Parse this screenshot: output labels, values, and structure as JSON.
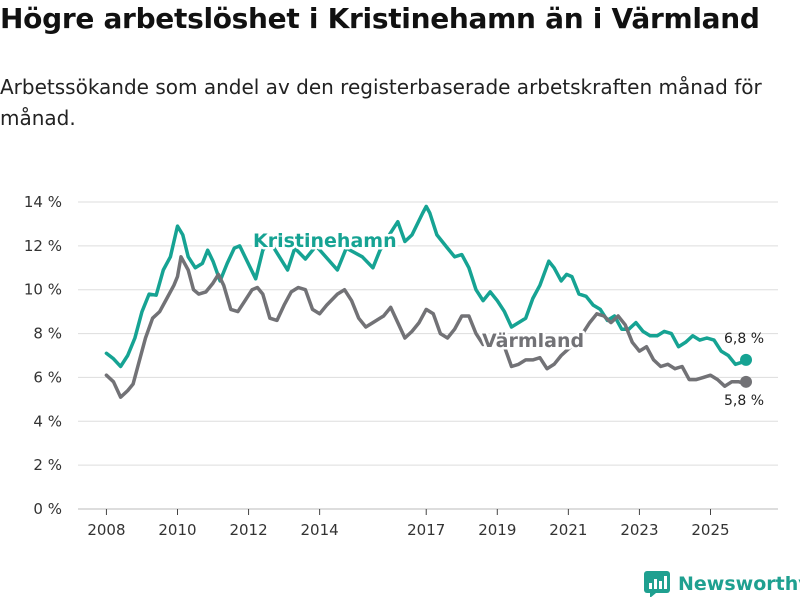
{
  "title": "Högre arbetslöshet i Kristinehamn än i Värmland",
  "subtitle": "Arbetssökande som andel av den registerbaserade arbetskraften månad för månad.",
  "brand": {
    "name": "Newsworthy"
  },
  "colors": {
    "kristinehamn": "#16a393",
    "varmland": "#727276",
    "grid": "#dddddd",
    "axis": "#333333"
  },
  "chart_data": {
    "type": "line",
    "title": "Högre arbetslöshet i Kristinehamn än i Värmland",
    "xlabel": "",
    "ylabel": "",
    "x_ticks": [
      {
        "value": 2008,
        "label": "2008"
      },
      {
        "value": 2010,
        "label": "2010"
      },
      {
        "value": 2012,
        "label": "2012"
      },
      {
        "value": 2014,
        "label": "2014"
      },
      {
        "value": 2017,
        "label": "2017"
      },
      {
        "value": 2019,
        "label": "2019"
      },
      {
        "value": 2021,
        "label": "2021"
      },
      {
        "value": 2023,
        "label": "2023"
      },
      {
        "value": 2025,
        "label": "2025"
      }
    ],
    "xlim": [
      2007.2,
      2026.9
    ],
    "y_ticks": [
      {
        "value": 0,
        "label": "0 %"
      },
      {
        "value": 2,
        "label": "2 %"
      },
      {
        "value": 4,
        "label": "4 %"
      },
      {
        "value": 6,
        "label": "6 %"
      },
      {
        "value": 8,
        "label": "8 %"
      },
      {
        "value": 10,
        "label": "10 %"
      },
      {
        "value": 12,
        "label": "12 %"
      },
      {
        "value": 14,
        "label": "14 %"
      }
    ],
    "ylim": [
      0,
      14
    ],
    "grid": true,
    "series": [
      {
        "name": "Kristinehamn",
        "label": "Kristinehamn",
        "end_label": "6,8 %",
        "end_value": 6.8,
        "color_key": "kristinehamn",
        "points": [
          [
            2008.0,
            7.1
          ],
          [
            2008.2,
            6.85
          ],
          [
            2008.4,
            6.5
          ],
          [
            2008.6,
            7.0
          ],
          [
            2008.8,
            7.8
          ],
          [
            2009.0,
            9.0
          ],
          [
            2009.2,
            9.8
          ],
          [
            2009.4,
            9.75
          ],
          [
            2009.6,
            10.9
          ],
          [
            2009.8,
            11.5
          ],
          [
            2010.0,
            12.9
          ],
          [
            2010.15,
            12.5
          ],
          [
            2010.3,
            11.5
          ],
          [
            2010.5,
            11.0
          ],
          [
            2010.7,
            11.2
          ],
          [
            2010.85,
            11.8
          ],
          [
            2011.0,
            11.3
          ],
          [
            2011.2,
            10.4
          ],
          [
            2011.4,
            11.2
          ],
          [
            2011.6,
            11.9
          ],
          [
            2011.75,
            12.0
          ],
          [
            2012.2,
            10.5
          ],
          [
            2012.4,
            11.8
          ],
          [
            2012.6,
            12.2
          ],
          [
            2013.1,
            10.9
          ],
          [
            2013.3,
            11.9
          ],
          [
            2013.6,
            11.4
          ],
          [
            2013.9,
            12.0
          ],
          [
            2014.5,
            10.9
          ],
          [
            2014.75,
            11.9
          ],
          [
            2015.2,
            11.5
          ],
          [
            2015.5,
            11.0
          ],
          [
            2015.7,
            11.8
          ],
          [
            2016.0,
            12.6
          ],
          [
            2016.2,
            13.1
          ],
          [
            2016.4,
            12.2
          ],
          [
            2016.6,
            12.5
          ],
          [
            2016.9,
            13.5
          ],
          [
            2017.0,
            13.8
          ],
          [
            2017.1,
            13.5
          ],
          [
            2017.3,
            12.5
          ],
          [
            2017.6,
            11.9
          ],
          [
            2017.8,
            11.5
          ],
          [
            2018.0,
            11.6
          ],
          [
            2018.2,
            11.0
          ],
          [
            2018.4,
            10.0
          ],
          [
            2018.6,
            9.5
          ],
          [
            2018.8,
            9.9
          ],
          [
            2019.0,
            9.5
          ],
          [
            2019.2,
            9.0
          ],
          [
            2019.4,
            8.3
          ],
          [
            2019.6,
            8.5
          ],
          [
            2019.8,
            8.7
          ],
          [
            2020.0,
            9.6
          ],
          [
            2020.2,
            10.2
          ],
          [
            2020.45,
            11.3
          ],
          [
            2020.6,
            11.0
          ],
          [
            2020.8,
            10.4
          ],
          [
            2020.95,
            10.7
          ],
          [
            2021.1,
            10.6
          ],
          [
            2021.3,
            9.8
          ],
          [
            2021.5,
            9.7
          ],
          [
            2021.7,
            9.3
          ],
          [
            2021.9,
            9.1
          ],
          [
            2022.1,
            8.6
          ],
          [
            2022.3,
            8.8
          ],
          [
            2022.5,
            8.2
          ],
          [
            2022.7,
            8.2
          ],
          [
            2022.9,
            8.5
          ],
          [
            2023.1,
            8.1
          ],
          [
            2023.3,
            7.9
          ],
          [
            2023.5,
            7.9
          ],
          [
            2023.7,
            8.1
          ],
          [
            2023.9,
            8.0
          ],
          [
            2024.1,
            7.4
          ],
          [
            2024.3,
            7.6
          ],
          [
            2024.5,
            7.9
          ],
          [
            2024.7,
            7.7
          ],
          [
            2024.9,
            7.8
          ],
          [
            2025.1,
            7.7
          ],
          [
            2025.3,
            7.2
          ],
          [
            2025.5,
            7.0
          ],
          [
            2025.7,
            6.6
          ],
          [
            2025.9,
            6.7
          ]
        ]
      },
      {
        "name": "Värmland",
        "label": "Värmland",
        "end_label": "5,8 %",
        "end_value": 5.8,
        "color_key": "varmland",
        "points": [
          [
            2008.0,
            6.1
          ],
          [
            2008.2,
            5.8
          ],
          [
            2008.4,
            5.1
          ],
          [
            2008.6,
            5.4
          ],
          [
            2008.75,
            5.7
          ],
          [
            2008.9,
            6.6
          ],
          [
            2009.1,
            7.8
          ],
          [
            2009.3,
            8.7
          ],
          [
            2009.5,
            9.0
          ],
          [
            2009.7,
            9.6
          ],
          [
            2009.9,
            10.2
          ],
          [
            2010.0,
            10.6
          ],
          [
            2010.1,
            11.5
          ],
          [
            2010.3,
            10.9
          ],
          [
            2010.45,
            10.0
          ],
          [
            2010.6,
            9.8
          ],
          [
            2010.8,
            9.9
          ],
          [
            2011.0,
            10.3
          ],
          [
            2011.15,
            10.7
          ],
          [
            2011.3,
            10.2
          ],
          [
            2011.5,
            9.1
          ],
          [
            2011.7,
            9.0
          ],
          [
            2011.9,
            9.5
          ],
          [
            2012.1,
            10.0
          ],
          [
            2012.25,
            10.1
          ],
          [
            2012.4,
            9.8
          ],
          [
            2012.6,
            8.7
          ],
          [
            2012.8,
            8.6
          ],
          [
            2013.0,
            9.3
          ],
          [
            2013.2,
            9.9
          ],
          [
            2013.4,
            10.1
          ],
          [
            2013.6,
            10.0
          ],
          [
            2013.8,
            9.1
          ],
          [
            2014.0,
            8.9
          ],
          [
            2014.2,
            9.3
          ],
          [
            2014.5,
            9.8
          ],
          [
            2014.7,
            10.0
          ],
          [
            2014.9,
            9.5
          ],
          [
            2015.1,
            8.7
          ],
          [
            2015.3,
            8.3
          ],
          [
            2015.5,
            8.5
          ],
          [
            2015.8,
            8.8
          ],
          [
            2016.0,
            9.2
          ],
          [
            2016.2,
            8.5
          ],
          [
            2016.4,
            7.8
          ],
          [
            2016.6,
            8.1
          ],
          [
            2016.8,
            8.5
          ],
          [
            2017.0,
            9.1
          ],
          [
            2017.2,
            8.9
          ],
          [
            2017.4,
            8.0
          ],
          [
            2017.6,
            7.8
          ],
          [
            2017.8,
            8.2
          ],
          [
            2018.0,
            8.8
          ],
          [
            2018.2,
            8.8
          ],
          [
            2018.4,
            8.0
          ],
          [
            2018.6,
            7.5
          ],
          [
            2018.8,
            7.6
          ],
          [
            2019.0,
            7.8
          ]
        ],
        "points_b": [
          [
            2019.0,
            7.8
          ],
          [
            2019.2,
            7.4
          ],
          [
            2019.4,
            6.5
          ],
          [
            2019.6,
            6.6
          ],
          [
            2019.8,
            6.8
          ],
          [
            2020.0,
            6.8
          ],
          [
            2020.2,
            6.9
          ],
          [
            2020.4,
            6.4
          ],
          [
            2020.6,
            6.6
          ],
          [
            2020.8,
            7.0
          ],
          [
            2021.0,
            7.3
          ],
          [
            2021.2,
            7.6
          ],
          [
            2021.4,
            8.0
          ],
          [
            2021.6,
            8.5
          ],
          [
            2021.8,
            8.9
          ],
          [
            2022.0,
            8.8
          ],
          [
            2022.2,
            8.5
          ],
          [
            2022.4,
            8.8
          ],
          [
            2022.6,
            8.4
          ],
          [
            2022.8,
            7.6
          ],
          [
            2023.0,
            7.2
          ],
          [
            2023.2,
            7.4
          ],
          [
            2023.4,
            6.8
          ],
          [
            2023.6,
            6.5
          ],
          [
            2023.8,
            6.6
          ],
          [
            2024.0,
            6.4
          ],
          [
            2024.2,
            6.5
          ],
          [
            2024.4,
            5.9
          ],
          [
            2024.6,
            5.9
          ],
          [
            2024.8,
            6.0
          ],
          [
            2025.0,
            6.1
          ],
          [
            2025.2,
            5.9
          ],
          [
            2025.4,
            5.6
          ],
          [
            2025.6,
            5.8
          ],
          [
            2025.8,
            5.8
          ],
          [
            2026.0,
            5.7
          ]
        ]
      }
    ]
  }
}
